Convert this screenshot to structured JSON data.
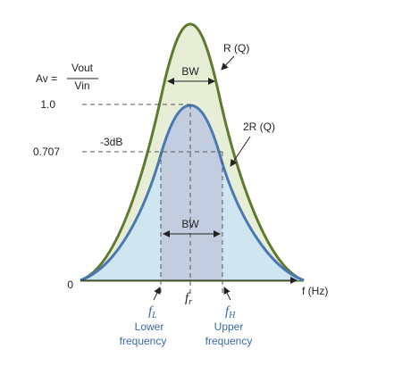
{
  "y_label": {
    "lhs": "Av =",
    "numerator": "Vout",
    "denominator": "Vin"
  },
  "y_ticks": [
    "1.0",
    "0.707",
    "0"
  ],
  "bandwidth_top": "BW",
  "bandwidth_bottom": "BW",
  "curve_labels": [
    "R (Q)",
    "2R (Q)"
  ],
  "cutoff_label": "-3dB",
  "x_axis_label": "f (Hz)",
  "frequencies": {
    "lower": {
      "symbol": "f",
      "subscript": "L",
      "caption": [
        "Lower",
        "frequency"
      ]
    },
    "resonant": {
      "symbol": "f",
      "subscript": "r"
    },
    "upper": {
      "symbol": "f",
      "subscript": "H",
      "caption": [
        "Upper",
        "frequency"
      ]
    }
  }
}
